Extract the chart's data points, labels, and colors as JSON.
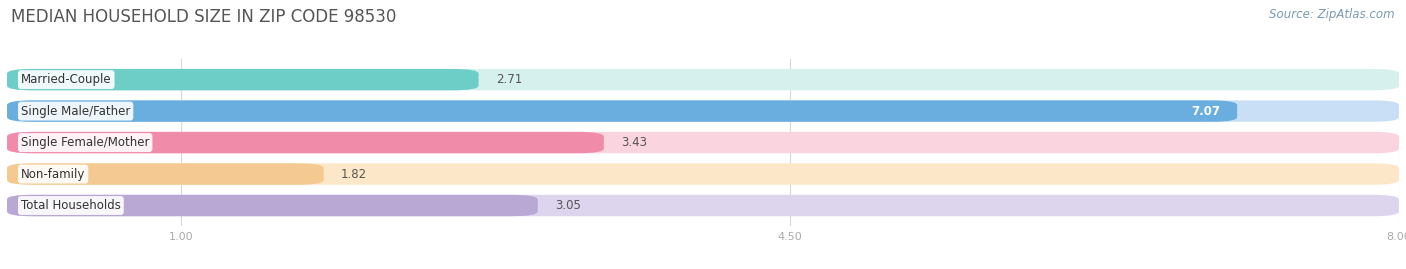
{
  "title": "MEDIAN HOUSEHOLD SIZE IN ZIP CODE 98530",
  "source": "Source: ZipAtlas.com",
  "categories": [
    "Married-Couple",
    "Single Male/Father",
    "Single Female/Mother",
    "Non-family",
    "Total Households"
  ],
  "values": [
    2.71,
    7.07,
    3.43,
    1.82,
    3.05
  ],
  "bar_colors": [
    "#6dcdc7",
    "#6aaee0",
    "#f08caa",
    "#f5c992",
    "#b9a8d4"
  ],
  "bar_bg_colors": [
    "#d6f0ee",
    "#c8dff5",
    "#fad4de",
    "#fce8c8",
    "#ddd5ee"
  ],
  "value_text_colors": [
    "#555555",
    "#ffffff",
    "#555555",
    "#555555",
    "#555555"
  ],
  "xlim_min": 0.0,
  "xlim_max": 8.0,
  "xticks": [
    1.0,
    4.5,
    8.0
  ],
  "fig_bg": "#ffffff",
  "title_fontsize": 12,
  "label_fontsize": 8.5,
  "value_fontsize": 8.5,
  "source_fontsize": 8.5,
  "bar_height": 0.68,
  "rounding_size": 0.15
}
